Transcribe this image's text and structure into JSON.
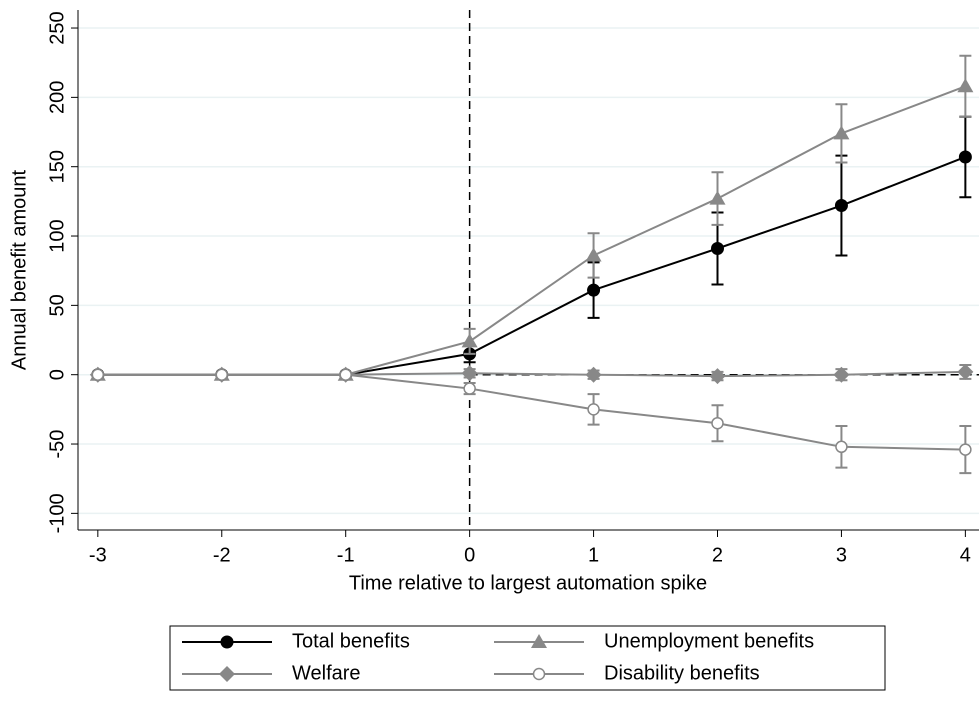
{
  "chart_data": {
    "type": "line",
    "x_label": "Time relative to largest automation spike",
    "y_label": "Annual benefit amount",
    "x": [
      -3,
      -2,
      -1,
      0,
      1,
      2,
      3,
      4
    ],
    "series": [
      {
        "name": "Total benefits",
        "color": "#000000",
        "marker": "filled-circle",
        "values": [
          0,
          0,
          0,
          15,
          61,
          91,
          122,
          157
        ],
        "errors": [
          0,
          0,
          0,
          6,
          20,
          26,
          36,
          29
        ]
      },
      {
        "name": "Unemployment benefits",
        "color": "#888888",
        "marker": "triangle",
        "values": [
          0,
          0,
          0,
          24,
          86,
          127,
          174,
          208
        ],
        "errors": [
          0,
          0,
          0,
          9,
          16,
          19,
          21,
          22
        ]
      },
      {
        "name": "Welfare",
        "color": "#888888",
        "marker": "diamond",
        "values": [
          0,
          0,
          0,
          1,
          0,
          -1,
          0,
          2
        ],
        "errors": [
          0,
          0,
          0,
          3,
          3,
          3,
          4,
          5
        ]
      },
      {
        "name": "Disability benefits",
        "color": "#888888",
        "marker": "hollow-circle",
        "values": [
          0,
          0,
          0,
          -10,
          -25,
          -35,
          -52,
          -54
        ],
        "errors": [
          0,
          0,
          0,
          4,
          11,
          13,
          15,
          17
        ]
      }
    ],
    "xlim": [
      -3.16,
      4.11
    ],
    "ylim": [
      -112,
      263
    ],
    "xticks": [
      -3,
      -2,
      -1,
      0,
      1,
      2,
      3,
      4
    ],
    "yticks": [
      -100,
      -50,
      0,
      50,
      100,
      150,
      200,
      250
    ],
    "grid": true,
    "vline": 0,
    "hline": 0,
    "legend": "bottom"
  }
}
